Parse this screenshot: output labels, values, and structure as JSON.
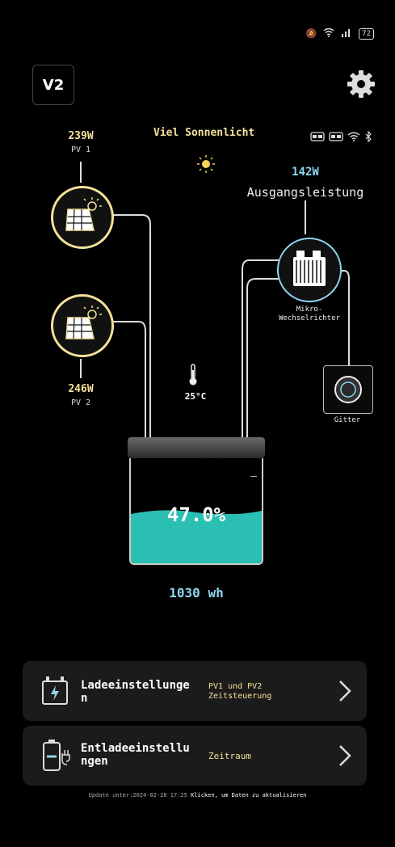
{
  "status_bar": {
    "battery": "72"
  },
  "header": {
    "device_label": "V2"
  },
  "weather": {
    "label": "Viel Sonnenlicht"
  },
  "pv1": {
    "power": "239W",
    "name": "PV 1"
  },
  "pv2": {
    "power": "246W",
    "name": "PV 2"
  },
  "output": {
    "power": "142W",
    "label": "Ausgangsleistung"
  },
  "inverter": {
    "label_line1": "Mikro-",
    "label_line2": "Wechselrichter"
  },
  "grid": {
    "label": "Gitter"
  },
  "temperature": {
    "value": "25°C"
  },
  "battery": {
    "percent": "47.0%",
    "level": 0.47,
    "capacity": "1030 wh"
  },
  "cards": [
    {
      "title_line1": "Ladeeinstellunge",
      "title_line2": "n",
      "sub_line1": "PV1 und PV2",
      "sub_line2": "Zeitsteuerung"
    },
    {
      "title_line1": "Entladeeinstellu",
      "title_line2": "ngen",
      "sub_line1": "Zeitraum",
      "sub_line2": ""
    }
  ],
  "footer": {
    "update_text": "Update unter:2024-02-28 17:25",
    "refresh_text": "Klicken, um Daten zu aktualisieren"
  },
  "colors": {
    "accent_yellow": "#f3e19a",
    "accent_cyan": "#8fd6ee",
    "battery_fill": "#2bbfb4"
  }
}
